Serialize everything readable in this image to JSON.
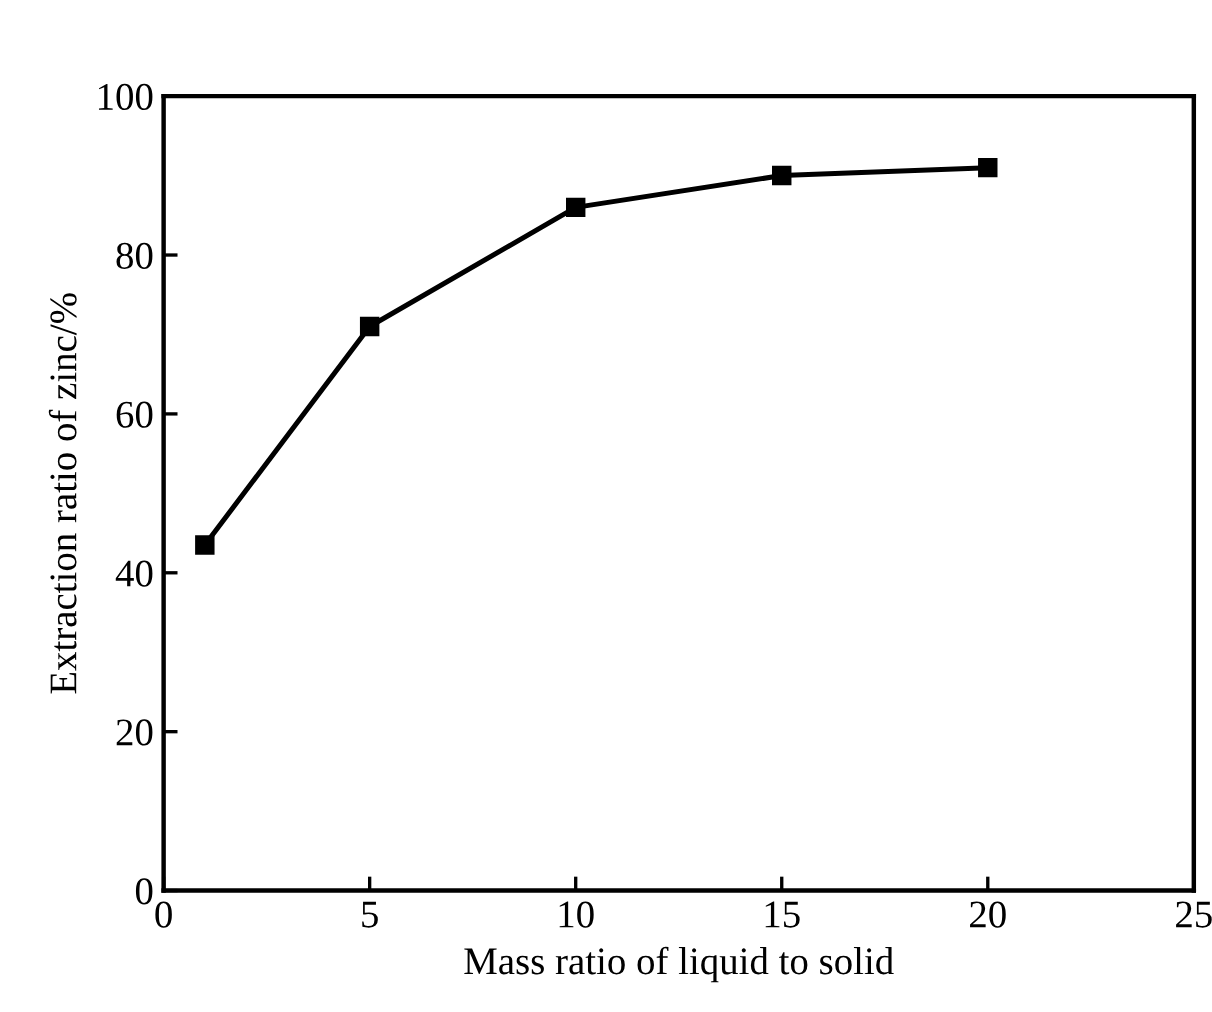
{
  "chart_data": {
    "type": "line",
    "xlabel": "Mass ratio of liquid to solid",
    "ylabel": "Extraction ratio of zinc/%",
    "x": [
      1,
      5,
      10,
      15,
      20
    ],
    "series": [
      {
        "color": "#000000",
        "values": [
          43.5,
          71,
          86,
          90,
          91
        ]
      }
    ],
    "xlim": [
      0,
      25
    ],
    "xticks": [
      0,
      5,
      10,
      15,
      20,
      25
    ],
    "ylim": [
      0,
      100
    ],
    "yticks": [
      0,
      20,
      40,
      60,
      80,
      100
    ],
    "marker": "square",
    "line_style": "solid",
    "grid": false
  }
}
